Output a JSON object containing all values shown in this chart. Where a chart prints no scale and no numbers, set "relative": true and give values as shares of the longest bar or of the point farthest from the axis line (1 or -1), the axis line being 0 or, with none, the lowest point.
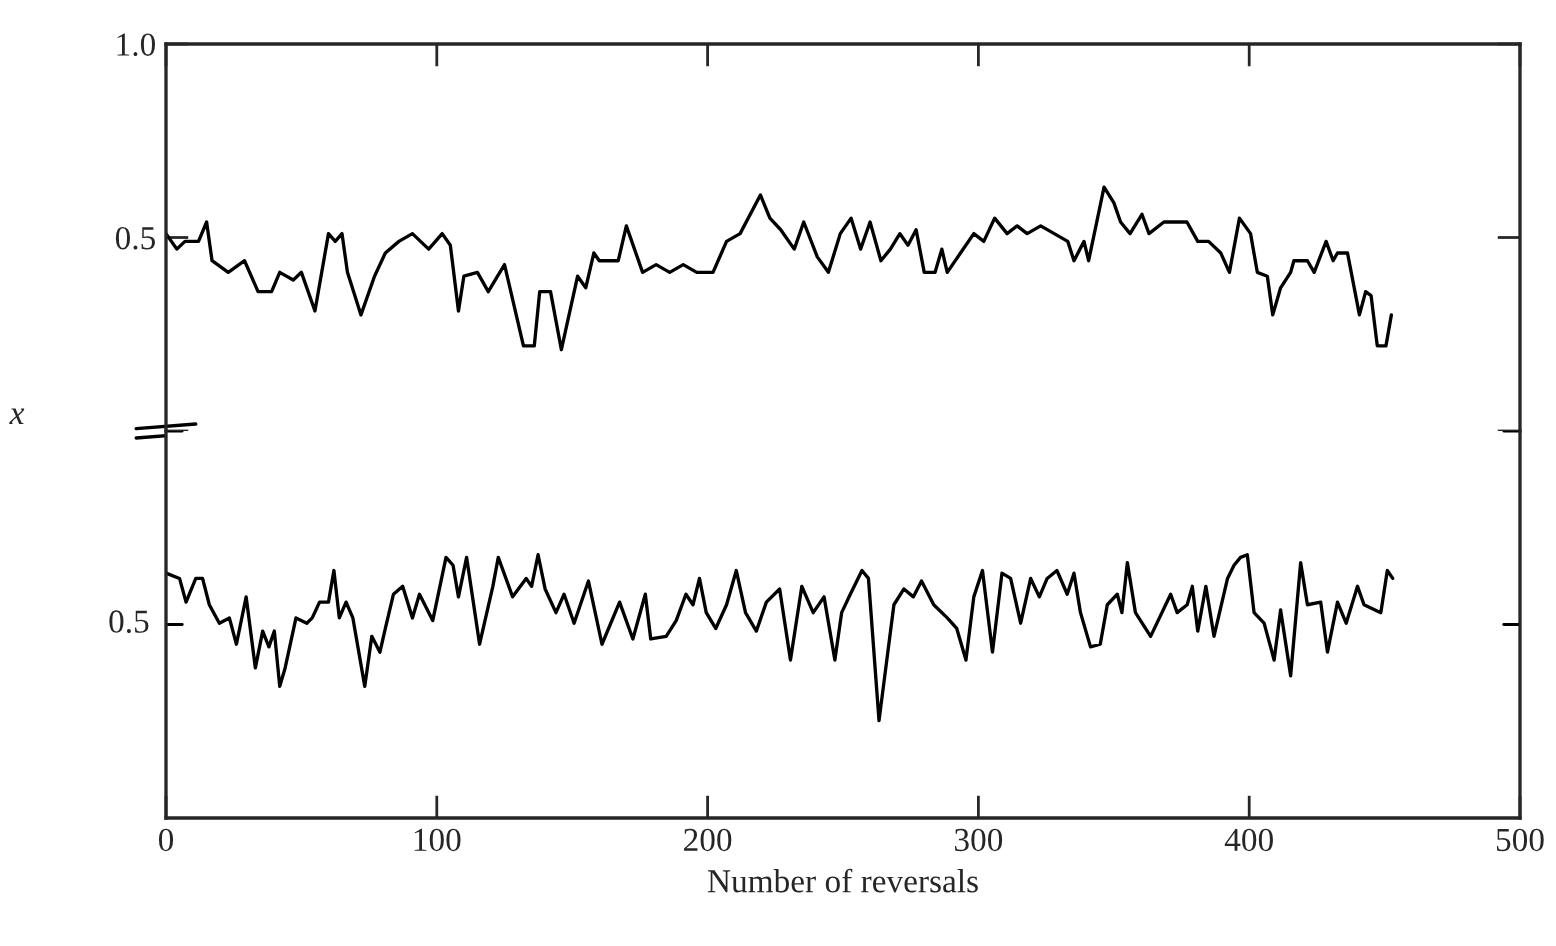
{
  "chart_data": [
    {
      "type": "line",
      "ylabel": "x",
      "xlim": [
        0,
        500
      ],
      "xticks": [
        {
          "value": 0,
          "label": null
        },
        {
          "value": 100,
          "label": null
        },
        {
          "value": 200,
          "label": null
        },
        {
          "value": 300,
          "label": null
        },
        {
          "value": 400,
          "label": null
        },
        {
          "value": 500,
          "label": null
        }
      ],
      "ylim": [
        0,
        1.0
      ],
      "yticks": [
        {
          "value": 0,
          "label": null
        },
        0.5,
        {
          "value": 1.0,
          "label": "1.0"
        }
      ],
      "tick_labels": "y",
      "series": [
        {
          "color": "#000000",
          "x": [
            0,
            4,
            7,
            12,
            15,
            17,
            23,
            29,
            34,
            39,
            42,
            47,
            50,
            55,
            60,
            62.5,
            65,
            67,
            72,
            77,
            81,
            86,
            91,
            97,
            102,
            105,
            108,
            110,
            115,
            119,
            125,
            132,
            136,
            138,
            142,
            146,
            152,
            155,
            158,
            160,
            167,
            170,
            176,
            181,
            186,
            191,
            196,
            202,
            207,
            212,
            219.5,
            223,
            227,
            232,
            235.5,
            240.5,
            244.6,
            249,
            253,
            256.5,
            260,
            264,
            267.5,
            271,
            274,
            277,
            280,
            284,
            286.5,
            288.5,
            293.4,
            298.3,
            302,
            306,
            310.6,
            314.3,
            318,
            323,
            328,
            333,
            335.3,
            339,
            340.7,
            346.4,
            350,
            352.5,
            356,
            360.4,
            363,
            368.5,
            373.4,
            377,
            381,
            385,
            389.5,
            392.7,
            396.4,
            400.5,
            403,
            406.7,
            408.7,
            411.6,
            415.3,
            416.5,
            421.5,
            424,
            428.4,
            431,
            432.6,
            436.3,
            440.7,
            443,
            445,
            447.3,
            450.5,
            452.5
          ],
          "values": [
            0.51,
            0.47,
            0.49,
            0.49,
            0.54,
            0.44,
            0.41,
            0.44,
            0.36,
            0.36,
            0.41,
            0.39,
            0.41,
            0.31,
            0.51,
            0.49,
            0.51,
            0.41,
            0.3,
            0.4,
            0.46,
            0.49,
            0.51,
            0.47,
            0.51,
            0.48,
            0.31,
            0.4,
            0.41,
            0.36,
            0.43,
            0.22,
            0.22,
            0.36,
            0.36,
            0.21,
            0.4,
            0.37,
            0.46,
            0.44,
            0.44,
            0.53,
            0.41,
            0.43,
            0.41,
            0.43,
            0.41,
            0.41,
            0.49,
            0.51,
            0.61,
            0.55,
            0.52,
            0.47,
            0.54,
            0.45,
            0.41,
            0.51,
            0.55,
            0.47,
            0.54,
            0.44,
            0.47,
            0.51,
            0.48,
            0.52,
            0.41,
            0.41,
            0.47,
            0.41,
            0.46,
            0.51,
            0.49,
            0.55,
            0.51,
            0.53,
            0.51,
            0.53,
            0.51,
            0.49,
            0.44,
            0.49,
            0.44,
            0.63,
            0.59,
            0.54,
            0.51,
            0.56,
            0.51,
            0.54,
            0.54,
            0.54,
            0.49,
            0.49,
            0.46,
            0.41,
            0.55,
            0.51,
            0.41,
            0.4,
            0.3,
            0.37,
            0.41,
            0.44,
            0.44,
            0.41,
            0.49,
            0.44,
            0.46,
            0.46,
            0.3,
            0.36,
            0.35,
            0.22,
            0.22,
            0.3
          ]
        }
      ]
    },
    {
      "type": "line",
      "xlabel": "Number of reversals",
      "xlim": [
        0,
        500
      ],
      "xticks": [
        0,
        100,
        200,
        300,
        400,
        500
      ],
      "relative": true,
      "annotations": [
        "0.5"
      ],
      "series": [
        {
          "color": "#000000",
          "x": [
            0,
            5,
            7.4,
            11,
            13.5,
            16,
            19.7,
            23.4,
            26,
            29.6,
            33,
            35.7,
            38,
            40,
            42,
            44,
            48,
            52,
            54,
            56.7,
            60,
            62,
            64,
            66.5,
            69,
            73.4,
            76,
            79,
            81,
            84,
            87.4,
            91,
            93.6,
            98.5,
            103.4,
            106,
            108,
            111,
            115.8,
            120.7,
            122.7,
            128,
            133,
            135,
            137.4,
            140,
            144,
            147,
            150.7,
            156,
            161,
            167.5,
            172.4,
            177,
            179,
            184.7,
            188.4,
            192,
            194.6,
            197,
            199.5,
            203,
            207,
            210.6,
            214,
            218,
            221.7,
            226.6,
            230.6,
            234.8,
            239,
            243,
            247,
            249.5,
            252.7,
            257,
            259.4,
            263.3,
            268.8,
            272.5,
            276,
            279,
            283.5,
            288.5,
            292,
            295.4,
            298.3,
            301.5,
            305.2,
            308.7,
            311.9,
            315.6,
            319.3,
            322.5,
            325.4,
            329,
            332.8,
            335.3,
            337.7,
            341.4,
            345,
            347.6,
            351.3,
            353,
            355,
            358,
            363.6,
            371,
            373.4,
            377.1,
            379,
            381,
            384,
            387,
            392,
            394.4,
            396.8,
            399.3,
            401.8,
            405.5,
            409.2,
            411.6,
            415.3,
            419,
            421.5,
            426.4,
            428.9,
            432.6,
            435.8,
            440,
            442.4,
            448.6,
            451,
            453
          ],
          "values": [
            0.93,
            0.91,
            0.82,
            0.91,
            0.91,
            0.81,
            0.74,
            0.76,
            0.66,
            0.84,
            0.57,
            0.71,
            0.65,
            0.71,
            0.5,
            0.57,
            0.76,
            0.74,
            0.76,
            0.82,
            0.82,
            0.94,
            0.76,
            0.82,
            0.76,
            0.5,
            0.69,
            0.63,
            0.72,
            0.85,
            0.88,
            0.76,
            0.85,
            0.75,
            0.99,
            0.96,
            0.84,
            0.99,
            0.66,
            0.88,
            0.99,
            0.84,
            0.91,
            0.88,
            1,
            0.87,
            0.78,
            0.85,
            0.74,
            0.9,
            0.66,
            0.82,
            0.68,
            0.85,
            0.68,
            0.69,
            0.75,
            0.85,
            0.81,
            0.91,
            0.78,
            0.72,
            0.81,
            0.94,
            0.78,
            0.71,
            0.82,
            0.87,
            0.6,
            0.88,
            0.78,
            0.84,
            0.6,
            0.78,
            0.85,
            0.94,
            0.91,
            0.37,
            0.81,
            0.87,
            0.84,
            0.9,
            0.81,
            0.76,
            0.72,
            0.6,
            0.84,
            0.94,
            0.63,
            0.93,
            0.91,
            0.74,
            0.91,
            0.84,
            0.91,
            0.94,
            0.85,
            0.93,
            0.78,
            0.65,
            0.66,
            0.81,
            0.85,
            0.78,
            0.97,
            0.78,
            0.69,
            0.85,
            0.78,
            0.81,
            0.88,
            0.71,
            0.88,
            0.69,
            0.91,
            0.96,
            0.99,
            1,
            0.78,
            0.74,
            0.6,
            0.79,
            0.54,
            0.97,
            0.81,
            0.82,
            0.63,
            0.82,
            0.74,
            0.88,
            0.81,
            0.78,
            0.94,
            0.91
          ]
        }
      ]
    }
  ]
}
